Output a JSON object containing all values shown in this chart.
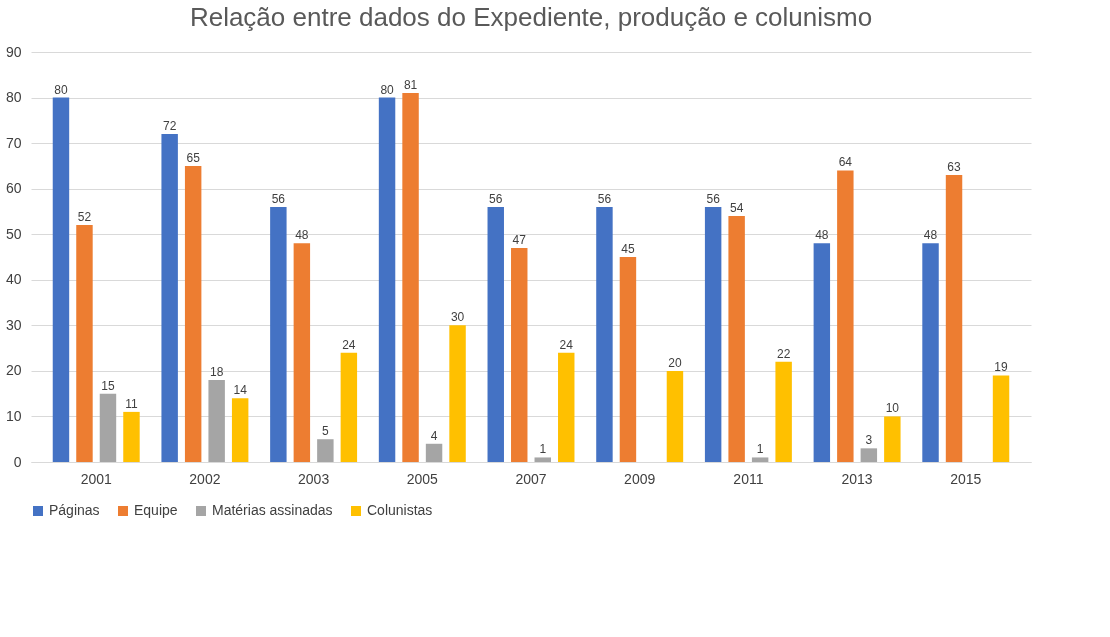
{
  "chart_data": {
    "type": "bar",
    "title": "Relação entre dados do Expediente, produção e colunismo",
    "categories": [
      "2001",
      "2002",
      "2003",
      "2005",
      "2007",
      "2009",
      "2011",
      "2013",
      "2015"
    ],
    "series": [
      {
        "name": "Páginas",
        "color": "#4472c4",
        "values": [
          80,
          72,
          56,
          80,
          56,
          56,
          56,
          48,
          48
        ]
      },
      {
        "name": "Equipe",
        "color": "#ed7d31",
        "values": [
          52,
          65,
          48,
          81,
          47,
          45,
          54,
          64,
          63
        ]
      },
      {
        "name": "Matérias assinadas",
        "color": "#a5a5a5",
        "values": [
          15,
          18,
          5,
          4,
          1,
          null,
          1,
          3,
          null
        ]
      },
      {
        "name": "Colunistas",
        "color": "#ffc000",
        "values": [
          11,
          14,
          24,
          30,
          24,
          20,
          22,
          10,
          19
        ]
      }
    ],
    "ylim": [
      0,
      90
    ],
    "yticks": [
      0,
      10,
      20,
      30,
      40,
      50,
      60,
      70,
      80,
      90
    ],
    "grid": "y",
    "legend": "bottom",
    "data_labels": true
  }
}
